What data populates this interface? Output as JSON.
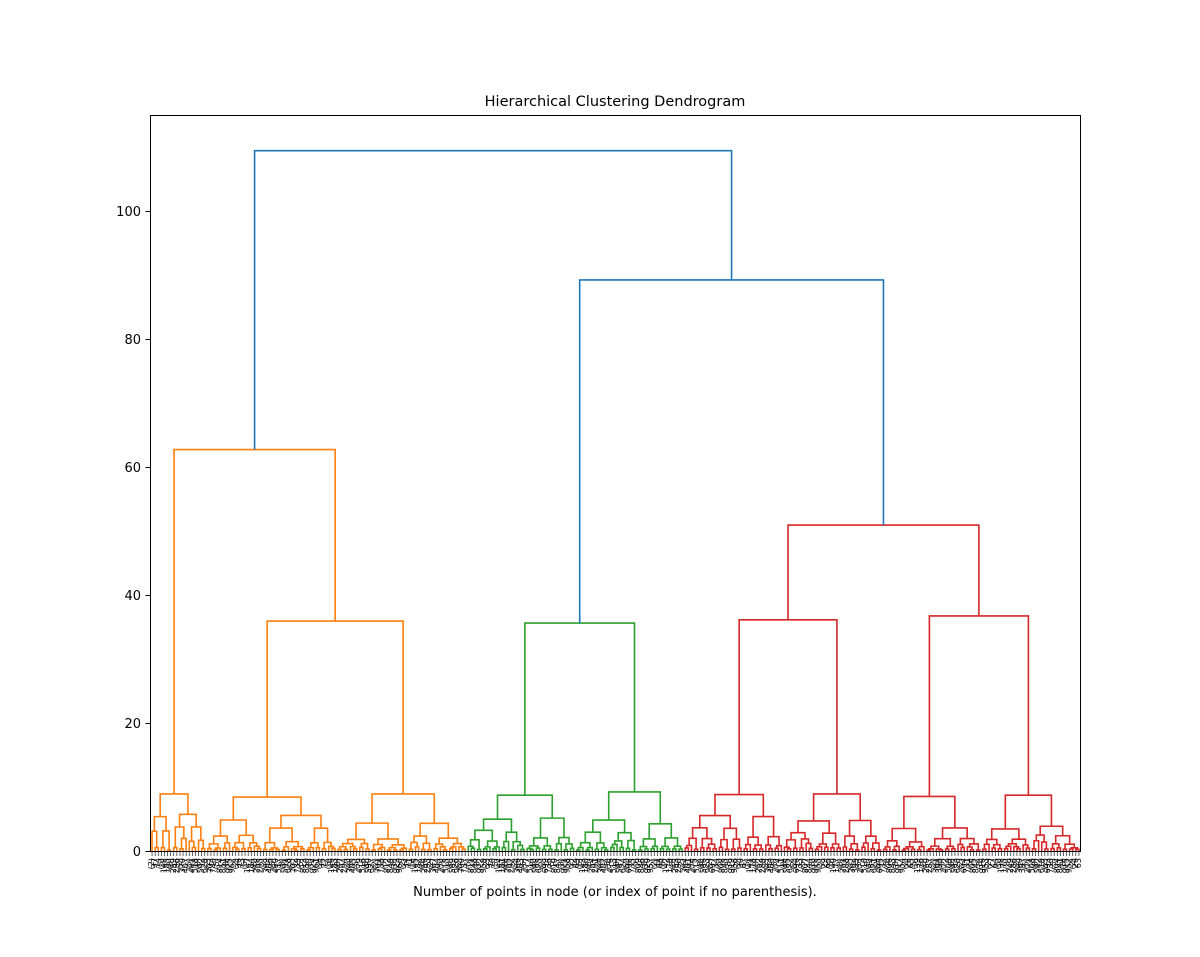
{
  "chart_data": {
    "type": "dendrogram",
    "title": "Hierarchical Clustering Dendrogram",
    "xlabel": "Number of points in node (or index of point if no parenthesis).",
    "ylabel": "",
    "ylim": [
      0,
      115
    ],
    "yticks": [
      0,
      20,
      40,
      60,
      80,
      100
    ],
    "grid": false,
    "colors": {
      "root": "#1f77b4",
      "cluster1": "#ff7f0e",
      "cluster2": "#2ca02c",
      "cluster3": "#d62728"
    },
    "leaf_count": 300,
    "leaf_range": [
      0,
      300
    ],
    "clusters": [
      {
        "name": "cluster1",
        "color": "#ff7f0e",
        "range": [
          0,
          102
        ]
      },
      {
        "name": "cluster2",
        "color": "#2ca02c",
        "range": [
          102,
          172
        ]
      },
      {
        "name": "cluster3",
        "color": "#d62728",
        "range": [
          172,
          300
        ]
      }
    ],
    "top_merges": [
      {
        "height": 109.5,
        "left": [
          0,
          102
        ],
        "right": [
          102,
          300
        ],
        "color": "#1f77b4"
      },
      {
        "height": 89.3,
        "left": [
          102,
          172
        ],
        "right": [
          172,
          300
        ],
        "color": "#1f77b4"
      },
      {
        "height": 62.8,
        "left": [
          0,
          18
        ],
        "right": [
          18,
          102
        ],
        "color": "#ff7f0e"
      },
      {
        "height": 36.0,
        "left": [
          18,
          60
        ],
        "right": [
          60,
          102
        ],
        "color": "#ff7f0e"
      },
      {
        "height": 35.7,
        "left": [
          102,
          137
        ],
        "right": [
          137,
          172
        ],
        "color": "#2ca02c"
      },
      {
        "height": 51.0,
        "left": [
          172,
          236
        ],
        "right": [
          236,
          300
        ],
        "color": "#d62728"
      },
      {
        "height": 36.2,
        "left": [
          172,
          204
        ],
        "right": [
          204,
          236
        ],
        "color": "#d62728"
      },
      {
        "height": 36.8,
        "left": [
          236,
          268
        ],
        "right": [
          268,
          300
        ],
        "color": "#d62728"
      }
    ],
    "subcluster_heights": [
      {
        "range": [
          0,
          18
        ],
        "height": 9.0,
        "color": "#ff7f0e"
      },
      {
        "range": [
          18,
          60
        ],
        "height": 8.5,
        "color": "#ff7f0e"
      },
      {
        "range": [
          60,
          102
        ],
        "height": 9.0,
        "color": "#ff7f0e"
      },
      {
        "range": [
          102,
          137
        ],
        "height": 8.8,
        "color": "#2ca02c"
      },
      {
        "range": [
          137,
          172
        ],
        "height": 9.3,
        "color": "#2ca02c"
      },
      {
        "range": [
          172,
          204
        ],
        "height": 8.9,
        "color": "#d62728"
      },
      {
        "range": [
          204,
          236
        ],
        "height": 9.0,
        "color": "#d62728"
      },
      {
        "range": [
          236,
          268
        ],
        "height": 8.6,
        "color": "#d62728"
      },
      {
        "range": [
          268,
          300
        ],
        "height": 8.8,
        "color": "#d62728"
      }
    ]
  }
}
